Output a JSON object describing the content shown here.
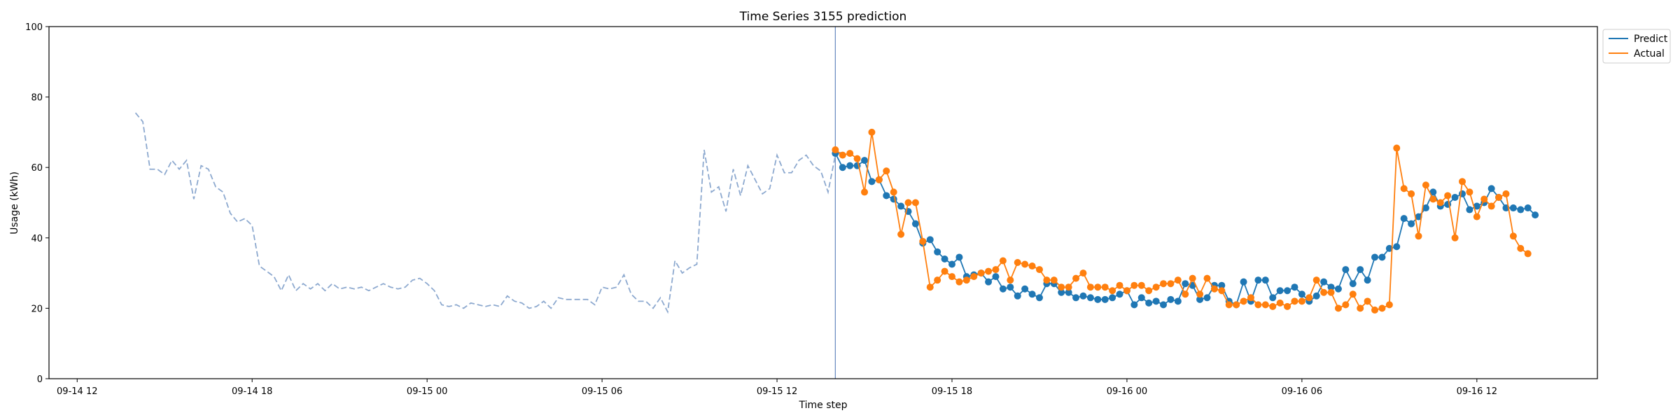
{
  "chart_data": {
    "type": "line",
    "title": "Time Series 3155 prediction",
    "xlabel": "Time step",
    "ylabel": "Usage (kWh)",
    "ylim": [
      0,
      100
    ],
    "xlim": [
      "2021-09-14 11:02",
      "2021-09-16 16:08"
    ],
    "x_ticks": [
      "09-14 12",
      "09-14 18",
      "09-15 00",
      "09-15 06",
      "09-15 12",
      "09-15 18",
      "09-16 00",
      "09-16 06",
      "09-16 12"
    ],
    "y_ticks": [
      0,
      20,
      40,
      60,
      80,
      100
    ],
    "grid": false,
    "legend_position": "upper right, outside plot",
    "forecast_start": "2021-09-15 14:00",
    "series": [
      {
        "role": "history",
        "style": "dashed",
        "color": "#8da9cf",
        "start": "2021-09-14 14:00",
        "step_minutes": 15,
        "values": [
          75.5,
          73,
          59.5,
          59.5,
          58,
          62,
          59.5,
          62,
          51,
          60.5,
          59.5,
          54.5,
          53,
          47,
          44.5,
          45.5,
          43.5,
          32,
          30.5,
          29,
          25,
          29.5,
          25,
          27,
          25.5,
          27,
          25,
          27,
          25.5,
          26,
          25.5,
          26,
          25,
          26,
          27,
          26,
          25.5,
          26,
          28,
          28.5,
          27,
          25,
          21,
          20.5,
          21,
          20,
          21.5,
          21,
          20.5,
          21,
          20.5,
          23.5,
          22,
          21.5,
          20,
          20.5,
          22,
          20,
          23,
          22.5,
          22.5,
          22.5,
          22.5,
          21,
          26,
          25.5,
          26,
          29.5,
          24,
          22,
          22,
          20,
          23,
          19,
          33.5,
          30,
          31.5,
          32.5,
          65,
          53,
          54.5,
          47.5,
          59.5,
          52,
          60.5,
          56.5,
          52.5,
          54,
          63.5,
          58.5,
          58.5,
          62,
          63.5,
          60.5,
          59,
          53,
          63.5,
          64.5
        ]
      },
      {
        "name": "Predict",
        "color": "#1f77b4",
        "start": "2021-09-15 14:00",
        "step_minutes": 15,
        "values": [
          64,
          60,
          60.5,
          60.5,
          62,
          56,
          56.5,
          52,
          51,
          49,
          47.5,
          44,
          38.5,
          39.5,
          36,
          34,
          32.5,
          34.5,
          29,
          29.5,
          30,
          27.5,
          29,
          25.5,
          26,
          23.5,
          25.5,
          24,
          23,
          27,
          27,
          24.5,
          24.5,
          23,
          23.5,
          23,
          22.5,
          22.5,
          23,
          24,
          25,
          21,
          23,
          21.5,
          22,
          21,
          22.5,
          22,
          27,
          26.5,
          22.5,
          23,
          26.5,
          26.5,
          22,
          21,
          27.5,
          22,
          28,
          28,
          23,
          25,
          25,
          26,
          24,
          22,
          23.5,
          27.5,
          26,
          25.5,
          31,
          27,
          31,
          28,
          34.5,
          34.5,
          37,
          37.5,
          45.5,
          44,
          46,
          48.5,
          53,
          49,
          49.5,
          51.5,
          52.5,
          48,
          49,
          50,
          54,
          51.5,
          48.5,
          48.5,
          48,
          48.5,
          46.5
        ]
      },
      {
        "name": "Actual",
        "color": "#ff7f0e",
        "start": "2021-09-15 14:00",
        "step_minutes": 15,
        "values": [
          65,
          63.5,
          64,
          62.5,
          53,
          70,
          56.5,
          59,
          53,
          41,
          50,
          50,
          39,
          26,
          28,
          30.5,
          29,
          27.5,
          28,
          29,
          30,
          30.5,
          31,
          33.5,
          28,
          33,
          32.5,
          32,
          31,
          28,
          28,
          26,
          26,
          28.5,
          30,
          26,
          26,
          26,
          25,
          26.5,
          25,
          26.5,
          26.5,
          25,
          26,
          27,
          27,
          28,
          24,
          28.5,
          24,
          28.5,
          25.5,
          25,
          21,
          21,
          22,
          23,
          21,
          21,
          20.5,
          21.5,
          20.5,
          22,
          22,
          23,
          28,
          24.5,
          24.5,
          20,
          21,
          24,
          20,
          22,
          19.5,
          20,
          21,
          65.5,
          54,
          52.5,
          40.5,
          55,
          51,
          50,
          52,
          40,
          56,
          53,
          46,
          51,
          49,
          51.5,
          52.5,
          40.5,
          37,
          35.5
        ]
      }
    ]
  }
}
